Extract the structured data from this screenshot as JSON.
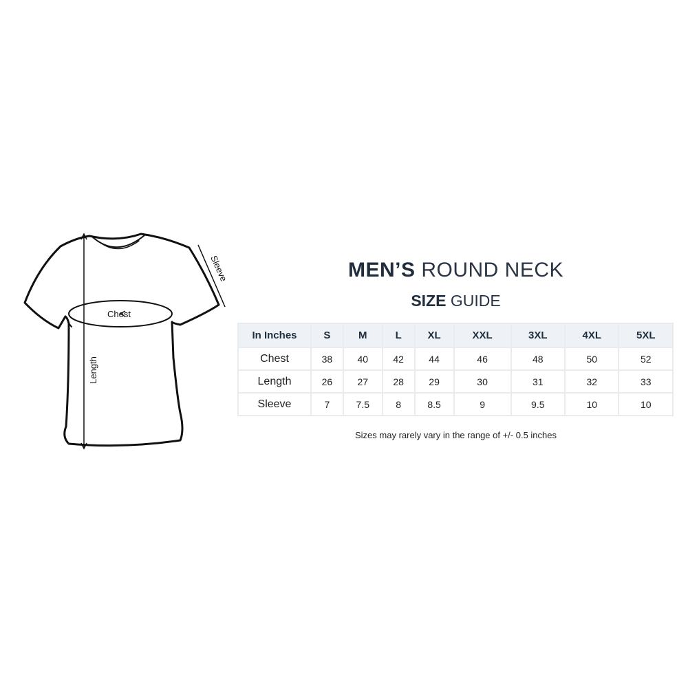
{
  "diagram": {
    "chest_label": "Chest",
    "length_label": "Length",
    "sleeve_label": "Sleeve"
  },
  "title": {
    "bold": "MEN’S",
    "rest": "ROUND NECK"
  },
  "subtitle": {
    "bold": "SIZE",
    "rest": "GUIDE"
  },
  "table": {
    "header": [
      "In Inches",
      "S",
      "M",
      "L",
      "XL",
      "XXL",
      "3XL",
      "4XL",
      "5XL"
    ],
    "rows": [
      {
        "label": "Chest",
        "values": [
          "38",
          "40",
          "42",
          "44",
          "46",
          "48",
          "50",
          "52"
        ]
      },
      {
        "label": "Length",
        "values": [
          "26",
          "27",
          "28",
          "29",
          "30",
          "31",
          "32",
          "33"
        ]
      },
      {
        "label": "Sleeve",
        "values": [
          "7",
          "7.5",
          "8",
          "8.5",
          "9",
          "9.5",
          "10",
          "10"
        ]
      }
    ]
  },
  "note": "Sizes may rarely vary in the range of +/- 0.5 inches"
}
